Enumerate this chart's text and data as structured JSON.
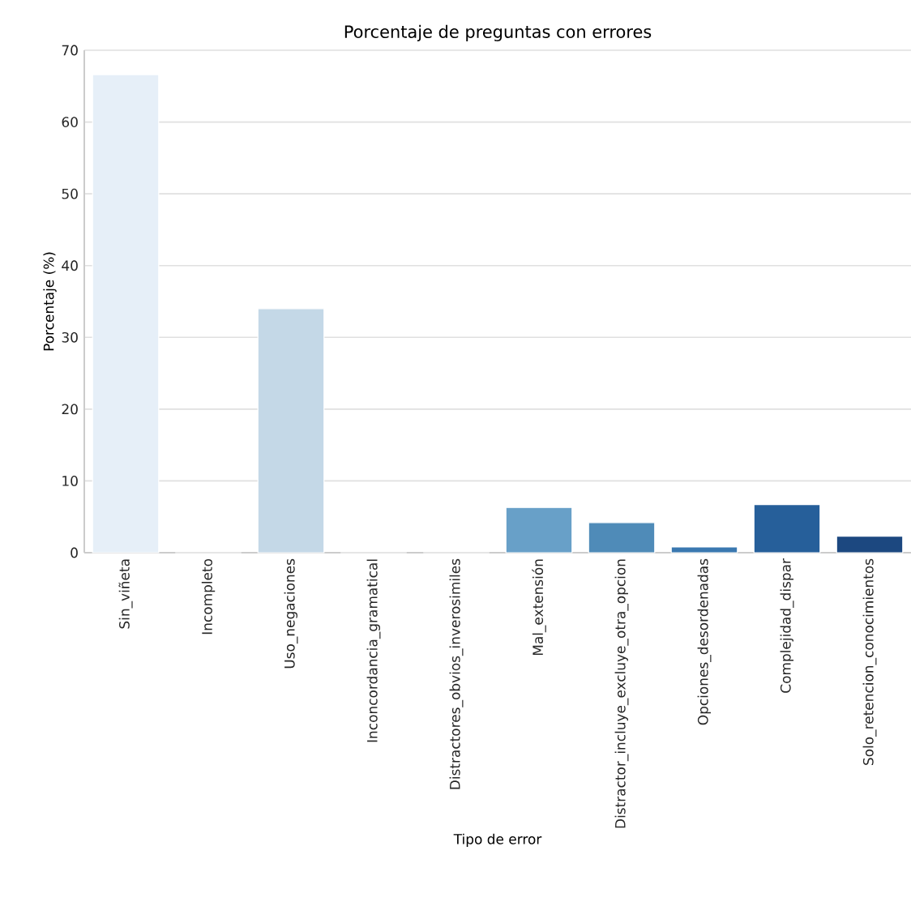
{
  "chart_data": {
    "type": "bar",
    "title": "Porcentaje de preguntas con errores",
    "xlabel": "Tipo de error",
    "ylabel": "Porcentaje (%)",
    "categories": [
      "Sin_viñeta",
      "Incompleto",
      "Uso_negaciones",
      "Inconcordancia_gramatical",
      "Distractores_obvios_inverosimiles",
      "Mal_extensión",
      "Distractor_incluye_excluye_otra_opcion",
      "Opciones_desordenadas",
      "Complejidad_dispar",
      "Solo_retencion_conocimientos"
    ],
    "values": [
      66.6,
      0,
      34.0,
      0,
      0,
      6.3,
      4.2,
      0.8,
      6.7,
      2.3
    ],
    "colors": [
      "#e6eff8",
      "#d6e5f3",
      "#c4d8e7",
      "#a9cbe3",
      "#88b8da",
      "#68a0c8",
      "#4f8bb8",
      "#3a78b0",
      "#265f9a",
      "#1c4880"
    ],
    "ylim": [
      0,
      70
    ],
    "yticks": [
      0,
      10,
      20,
      30,
      40,
      50,
      60,
      70
    ],
    "grid": "y"
  }
}
